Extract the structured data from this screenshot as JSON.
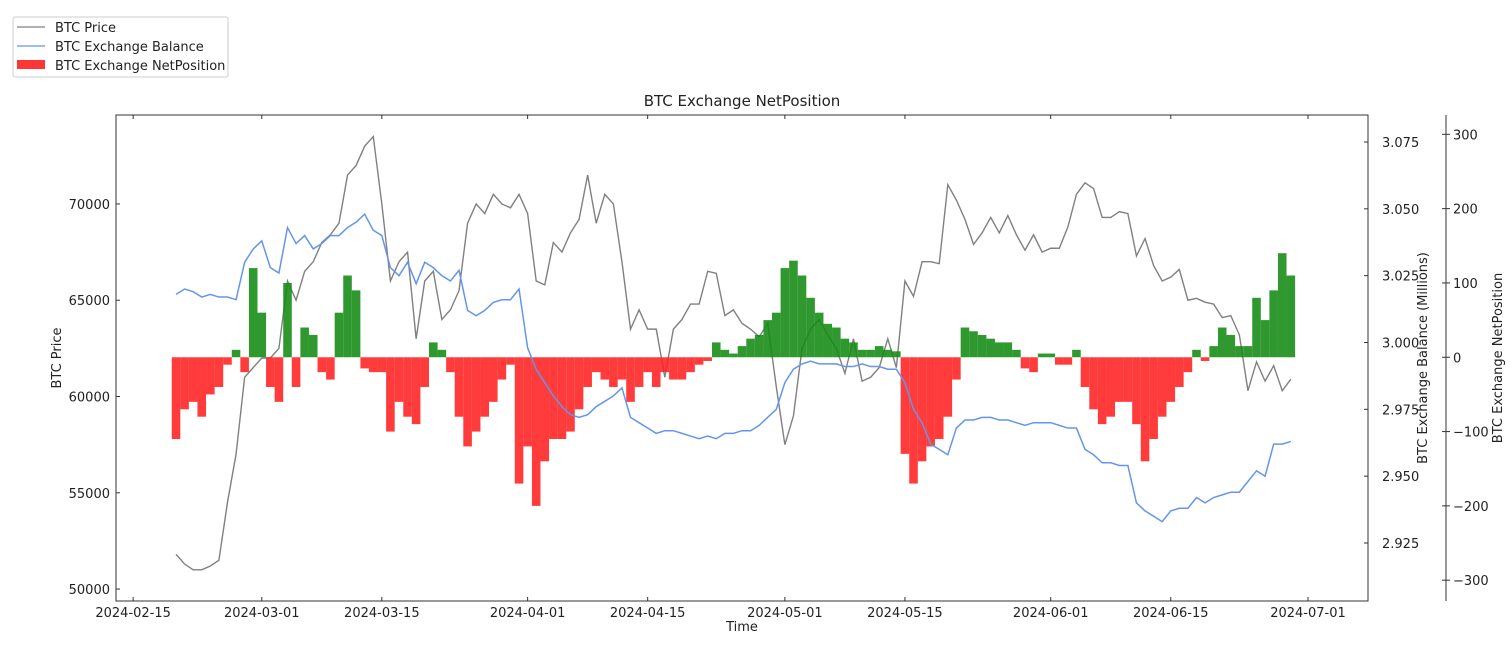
{
  "chart_data": {
    "type": "line",
    "title": "BTC Exchange NetPosition",
    "xlabel": "Time",
    "ylabel_left": "BTC Price",
    "ylabel_right1": "BTC Exchange Balance (Millions)",
    "ylabel_right2": "BTC Exchange NetPosition",
    "legend_placement": "top-left (outside)",
    "legend": [
      "BTC Price",
      "BTC Exchange Balance",
      "BTC Exchange NetPosition"
    ],
    "colors": {
      "price": "#808080",
      "balance": "#6495ed",
      "positive": "#128a12",
      "negative": "#ff2020"
    },
    "x_ticks": [
      "2024-02-15",
      "2024-03-01",
      "2024-03-15",
      "2024-04-01",
      "2024-04-15",
      "2024-05-01",
      "2024-05-15",
      "2024-06-01",
      "2024-06-15",
      "2024-07-01"
    ],
    "x_range": [
      "2024-02-13",
      "2024-07-08"
    ],
    "price_ticks": [
      "50000",
      "55000",
      "60000",
      "65000",
      "70000"
    ],
    "price_range": [
      49380,
      74620
    ],
    "balance_ticks": [
      "2.925",
      "2.950",
      "2.975",
      "3.000",
      "3.025",
      "3.050",
      "3.075"
    ],
    "balance_range": [
      2.9033,
      3.0851
    ],
    "netposition_ticks": [
      "−300",
      "−200",
      "−100",
      "0",
      "100",
      "200",
      "300"
    ],
    "netposition_tick_values": [
      -300,
      -200,
      -100,
      0,
      100,
      200,
      300
    ],
    "netposition_range": [
      -328,
      326
    ],
    "start_date": "2024-02-20",
    "series": [
      {
        "name": "BTC Price",
        "values": [
          51800,
          51300,
          51000,
          51000,
          51200,
          51500,
          54500,
          57000,
          61000,
          61500,
          62000,
          62000,
          62500,
          66000,
          65000,
          66500,
          67000,
          68000,
          68400,
          69000,
          71500,
          72000,
          73000,
          73500,
          70000,
          66000,
          67000,
          67500,
          63000,
          66000,
          66500,
          64000,
          64500,
          65500,
          69000,
          70000,
          69500,
          70500,
          70000,
          69800,
          70500,
          69500,
          66000,
          65800,
          68000,
          67500,
          68500,
          69200,
          71500,
          69000,
          70500,
          70000,
          67000,
          63500,
          64500,
          63500,
          63500,
          61000,
          63500,
          64000,
          64800,
          64800,
          66500,
          66400,
          64200,
          64500,
          63800,
          63500,
          63100,
          63800,
          60500,
          57500,
          59000,
          62500,
          63500,
          64000,
          63200,
          62500,
          61200,
          63000,
          60800,
          61000,
          61500,
          63000,
          61500,
          66000,
          65200,
          67000,
          67000,
          66900,
          71000,
          70200,
          69200,
          67900,
          68500,
          69300,
          68500,
          69400,
          68400,
          67600,
          68400,
          67500,
          67700,
          67700,
          68800,
          70500,
          71100,
          70800,
          69300,
          69300,
          69600,
          69500,
          67300,
          68200,
          66800,
          66000,
          66200,
          66600,
          65000,
          65100,
          64900,
          64800,
          64100,
          64200,
          63200,
          60300,
          61800,
          60800,
          61600,
          60300,
          60900
        ]
      },
      {
        "name": "BTC Exchange Balance",
        "values": [
          3.018,
          3.02,
          3.019,
          3.017,
          3.018,
          3.017,
          3.017,
          3.016,
          3.03,
          3.035,
          3.038,
          3.028,
          3.026,
          3.043,
          3.037,
          3.04,
          3.035,
          3.037,
          3.04,
          3.04,
          3.043,
          3.045,
          3.048,
          3.042,
          3.04,
          3.028,
          3.025,
          3.03,
          3.022,
          3.03,
          3.028,
          3.025,
          3.023,
          3.027,
          3.012,
          3.01,
          3.012,
          3.015,
          3.016,
          3.016,
          3.02,
          2.998,
          2.99,
          2.985,
          2.98,
          2.976,
          2.973,
          2.972,
          2.973,
          2.976,
          2.978,
          2.98,
          2.983,
          2.972,
          2.97,
          2.968,
          2.966,
          2.967,
          2.967,
          2.966,
          2.965,
          2.964,
          2.965,
          2.964,
          2.966,
          2.966,
          2.967,
          2.967,
          2.969,
          2.972,
          2.975,
          2.985,
          2.99,
          2.992,
          2.993,
          2.992,
          2.992,
          2.992,
          2.991,
          2.991,
          2.992,
          2.991,
          2.991,
          2.99,
          2.99,
          2.985,
          2.975,
          2.97,
          2.962,
          2.96,
          2.958,
          2.968,
          2.971,
          2.971,
          2.972,
          2.972,
          2.971,
          2.971,
          2.97,
          2.969,
          2.97,
          2.97,
          2.97,
          2.969,
          2.968,
          2.968,
          2.96,
          2.958,
          2.955,
          2.955,
          2.954,
          2.954,
          2.94,
          2.937,
          2.935,
          2.933,
          2.937,
          2.938,
          2.938,
          2.942,
          2.94,
          2.942,
          2.943,
          2.944,
          2.944,
          2.948,
          2.952,
          2.95,
          2.962,
          2.962,
          2.963
        ]
      },
      {
        "name": "BTC Exchange NetPosition",
        "values": [
          -110,
          -70,
          -60,
          -80,
          -50,
          -40,
          -10,
          10,
          -20,
          120,
          60,
          -40,
          -60,
          100,
          -40,
          40,
          30,
          -20,
          -30,
          60,
          110,
          90,
          -15,
          -20,
          -20,
          -100,
          -60,
          -80,
          -90,
          -40,
          20,
          10,
          -20,
          -80,
          -120,
          -100,
          -80,
          -60,
          -30,
          -10,
          -170,
          -120,
          -200,
          -140,
          -110,
          -110,
          -100,
          -70,
          -40,
          -20,
          -30,
          -40,
          -30,
          -60,
          -40,
          -20,
          -40,
          -20,
          -30,
          -30,
          -20,
          -10,
          -5,
          20,
          10,
          5,
          15,
          25,
          30,
          50,
          60,
          120,
          130,
          110,
          80,
          60,
          45,
          40,
          25,
          20,
          10,
          10,
          15,
          10,
          8,
          -130,
          -170,
          -140,
          -120,
          -110,
          -80,
          -30,
          40,
          35,
          30,
          25,
          20,
          20,
          10,
          -15,
          -20,
          5,
          5,
          -10,
          -10,
          10,
          -40,
          -70,
          -90,
          -80,
          -60,
          -60,
          -90,
          -140,
          -110,
          -80,
          -60,
          -40,
          -20,
          10,
          -5,
          15,
          40,
          30,
          15,
          15,
          80,
          50,
          90,
          140,
          110
        ]
      }
    ]
  }
}
